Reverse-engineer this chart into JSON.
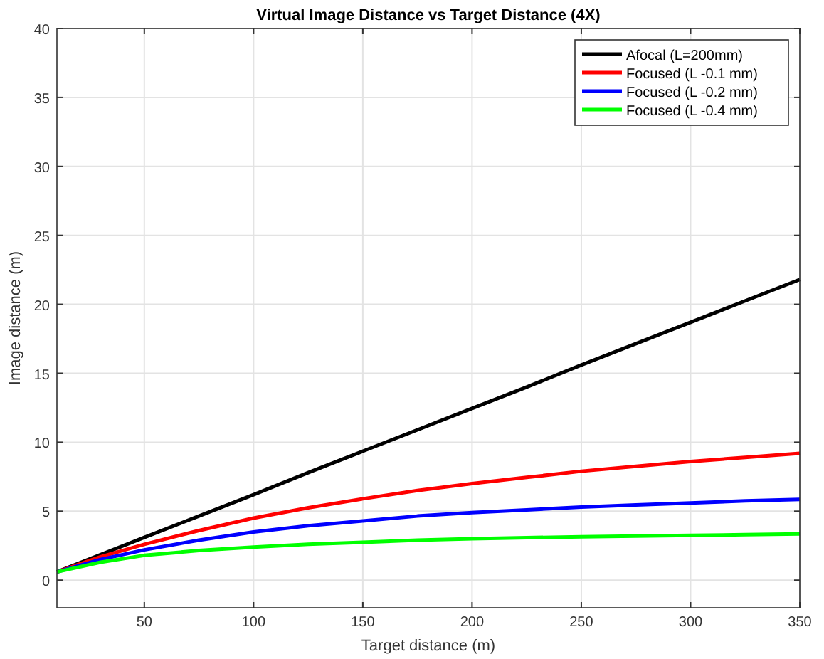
{
  "chart_data": {
    "type": "line",
    "title": "Virtual Image Distance vs Target Distance (4X)",
    "xlabel": "Target distance  (m)",
    "ylabel": "Image distance (m)",
    "x": [
      10,
      30,
      50,
      75,
      100,
      125,
      150,
      175,
      200,
      225,
      250,
      275,
      300,
      325,
      350
    ],
    "series": [
      {
        "name": "Afocal (L=200mm)",
        "color": "#000000",
        "values": [
          0.6,
          1.85,
          3.1,
          4.65,
          6.2,
          7.8,
          9.35,
          10.9,
          12.45,
          14.0,
          15.6,
          17.15,
          18.7,
          20.25,
          21.8
        ]
      },
      {
        "name": "Focused (L -0.1 mm)",
        "color": "#ff0000",
        "values": [
          0.6,
          1.7,
          2.6,
          3.6,
          4.5,
          5.25,
          5.9,
          6.5,
          7.0,
          7.45,
          7.9,
          8.25,
          8.6,
          8.9,
          9.2
        ]
      },
      {
        "name": "Focused (L -0.2 mm)",
        "color": "#0000ff",
        "values": [
          0.6,
          1.5,
          2.2,
          2.9,
          3.5,
          3.95,
          4.3,
          4.65,
          4.9,
          5.1,
          5.3,
          5.45,
          5.6,
          5.75,
          5.85
        ]
      },
      {
        "name": "Focused (L -0.4 mm)",
        "color": "#00ff00",
        "values": [
          0.6,
          1.3,
          1.8,
          2.15,
          2.4,
          2.6,
          2.75,
          2.9,
          3.0,
          3.08,
          3.15,
          3.2,
          3.25,
          3.3,
          3.35
        ]
      }
    ],
    "xlim": [
      10,
      350
    ],
    "xticks": [
      50,
      100,
      150,
      200,
      250,
      300,
      350
    ],
    "ylim": [
      -2,
      40
    ],
    "yticks": [
      0,
      5,
      10,
      15,
      20,
      25,
      30,
      35,
      40
    ],
    "grid": true,
    "legend": "top right"
  }
}
